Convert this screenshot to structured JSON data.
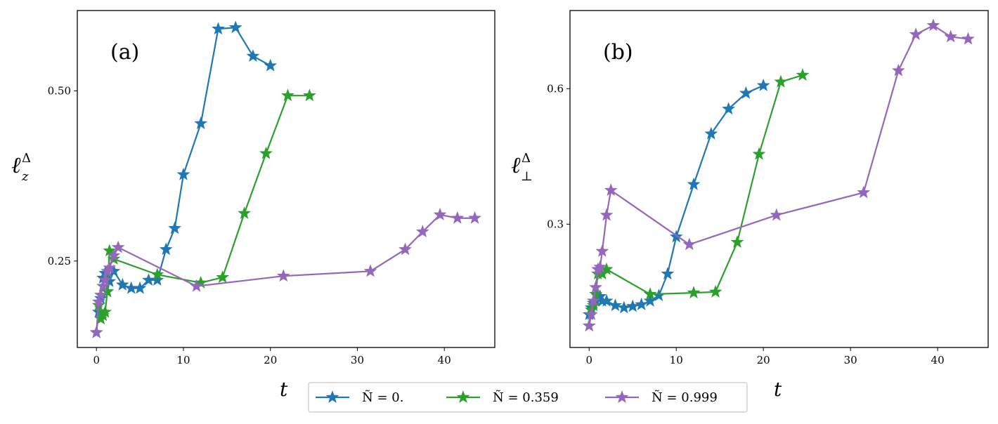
{
  "chart_data": [
    {
      "type": "line",
      "panel_label": "(a)",
      "xlabel": "t",
      "ylabel": {
        "main": "ℓ",
        "sup": "Δ",
        "sub": "z"
      },
      "xlim": [
        -2.2,
        45.8
      ],
      "ylim": [
        0.123,
        0.618
      ],
      "xticks": [
        0,
        10,
        20,
        30,
        40
      ],
      "yticks": [
        0.25,
        0.5
      ],
      "ytick_labels": [
        "0.25",
        "0.50"
      ],
      "series": [
        {
          "name": "Ñ = 0.",
          "color": "#1f77b4",
          "x": [
            0,
            0.25,
            0.5,
            0.75,
            1,
            1.25,
            1.5,
            2,
            3,
            4,
            5,
            6,
            7,
            8,
            9,
            10,
            12,
            14,
            16,
            18,
            20
          ],
          "y": [
            0.145,
            0.175,
            0.195,
            0.225,
            0.232,
            0.205,
            0.22,
            0.235,
            0.215,
            0.21,
            0.21,
            0.222,
            0.222,
            0.267,
            0.298,
            0.377,
            0.452,
            0.591,
            0.593,
            0.551,
            0.537
          ]
        },
        {
          "name": "Ñ = 0.359",
          "color": "#2ca02c",
          "x": [
            0,
            0.25,
            0.5,
            0.75,
            1,
            1.25,
            1.5,
            2,
            7,
            12,
            14.5,
            17,
            19.5,
            22,
            24.5
          ],
          "y": [
            0.145,
            0.185,
            0.165,
            0.17,
            0.175,
            0.205,
            0.265,
            0.253,
            0.23,
            0.218,
            0.226,
            0.32,
            0.408,
            0.493,
            0.493
          ]
        },
        {
          "name": "Ñ = 0.999",
          "color": "#9467bd",
          "x": [
            0,
            0.25,
            0.5,
            0.75,
            1,
            1.25,
            1.5,
            2,
            2.5,
            11.5,
            21.5,
            31.5,
            35.5,
            37.5,
            39.5,
            41.5,
            43.5
          ],
          "y": [
            0.145,
            0.19,
            0.2,
            0.213,
            0.222,
            0.235,
            0.24,
            0.258,
            0.27,
            0.213,
            0.228,
            0.235,
            0.267,
            0.293,
            0.318,
            0.313,
            0.313
          ]
        }
      ]
    },
    {
      "type": "line",
      "panel_label": "(b)",
      "xlabel": "t",
      "ylabel": {
        "main": "ℓ",
        "sup": "Δ",
        "sub": "⊥"
      },
      "xlim": [
        -2.2,
        45.8
      ],
      "ylim": [
        0.027,
        0.773
      ],
      "xticks": [
        0,
        10,
        20,
        30,
        40
      ],
      "yticks": [
        0.3,
        0.6
      ],
      "ytick_labels": [
        "0.3",
        "0.6"
      ],
      "series": [
        {
          "name": "Ñ = 0.",
          "color": "#1f77b4",
          "x": [
            0,
            0.25,
            0.5,
            0.75,
            1,
            1.25,
            1.5,
            2,
            3,
            4,
            5,
            6,
            7,
            8,
            9,
            10,
            12,
            14,
            16,
            18,
            20
          ],
          "y": [
            0.1,
            0.115,
            0.125,
            0.13,
            0.14,
            0.14,
            0.13,
            0.13,
            0.12,
            0.115,
            0.118,
            0.122,
            0.13,
            0.142,
            0.19,
            0.272,
            0.388,
            0.5,
            0.555,
            0.59,
            0.607
          ]
        },
        {
          "name": "Ñ = 0.359",
          "color": "#2ca02c",
          "x": [
            0,
            0.25,
            0.5,
            0.75,
            1,
            1.25,
            1.5,
            2,
            7,
            12,
            14.5,
            17,
            19.5,
            22,
            24.5
          ],
          "y": [
            0.075,
            0.11,
            0.12,
            0.145,
            0.19,
            0.2,
            0.19,
            0.2,
            0.145,
            0.148,
            0.15,
            0.26,
            0.455,
            0.615,
            0.63
          ]
        },
        {
          "name": "Ñ = 0.999",
          "color": "#9467bd",
          "x": [
            0,
            0.25,
            0.5,
            0.75,
            1,
            1.25,
            1.5,
            2,
            2.5,
            11.5,
            21.5,
            31.5,
            35.5,
            37.5,
            39.5,
            41.5,
            43.5
          ],
          "y": [
            0.075,
            0.1,
            0.13,
            0.16,
            0.2,
            0.205,
            0.24,
            0.32,
            0.375,
            0.255,
            0.32,
            0.37,
            0.64,
            0.72,
            0.74,
            0.715,
            0.71
          ]
        }
      ]
    }
  ],
  "legend": [
    {
      "label": "Ñ = 0.",
      "color": "#1f77b4"
    },
    {
      "label": "Ñ = 0.359",
      "color": "#2ca02c"
    },
    {
      "label": "Ñ = 0.999",
      "color": "#9467bd"
    }
  ]
}
